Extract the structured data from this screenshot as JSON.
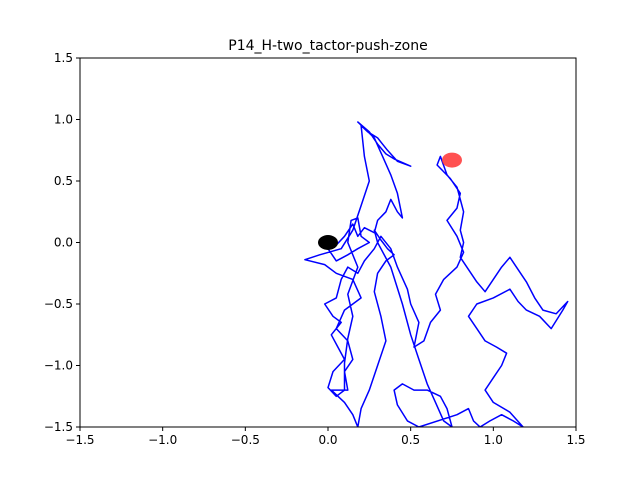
{
  "chart_data": {
    "type": "line",
    "title": "P14_H-two_tactor-push-zone",
    "xlabel": "",
    "ylabel": "",
    "xlim": [
      -1.5,
      1.5
    ],
    "ylim": [
      -1.5,
      1.5
    ],
    "xticks": [
      "−1.5",
      "−1.0",
      "−0.5",
      "0.0",
      "0.5",
      "1.0",
      "1.5"
    ],
    "xtick_values": [
      -1.5,
      -1.0,
      -0.5,
      0.0,
      0.5,
      1.0,
      1.5
    ],
    "yticks": [
      "−1.5",
      "−1.0",
      "−0.5",
      "0.0",
      "0.5",
      "1.0",
      "1.5"
    ],
    "ytick_values": [
      -1.5,
      -1.0,
      -0.5,
      0.0,
      0.5,
      1.0,
      1.5
    ],
    "grid": false,
    "colors": {
      "path": "#0000ff",
      "start": "#000000",
      "target": "#ff3333"
    },
    "start_marker": {
      "x": 0.0,
      "y": 0.0
    },
    "target_marker": {
      "x": 0.75,
      "y": 0.67
    },
    "series": [
      {
        "points": [
          [
            0.0,
            0.0
          ],
          [
            0.05,
            -0.02
          ],
          [
            0.1,
            0.05
          ],
          [
            0.15,
            0.15
          ],
          [
            0.18,
            0.05
          ],
          [
            0.22,
            0.12
          ],
          [
            0.28,
            0.08
          ],
          [
            0.3,
            0.18
          ],
          [
            0.35,
            0.25
          ],
          [
            0.38,
            0.35
          ],
          [
            0.42,
            0.25
          ],
          [
            0.45,
            0.2
          ],
          [
            0.42,
            0.4
          ],
          [
            0.38,
            0.55
          ],
          [
            0.33,
            0.7
          ],
          [
            0.28,
            0.85
          ],
          [
            0.18,
            0.98
          ],
          [
            0.25,
            0.9
          ],
          [
            0.3,
            0.8
          ],
          [
            0.35,
            0.72
          ],
          [
            0.4,
            0.68
          ],
          [
            0.45,
            0.65
          ],
          [
            0.5,
            0.62
          ],
          [
            0.42,
            0.66
          ],
          [
            0.36,
            0.75
          ],
          [
            0.3,
            0.85
          ],
          [
            0.24,
            0.9
          ],
          [
            0.2,
            0.95
          ],
          [
            0.22,
            0.7
          ],
          [
            0.25,
            0.5
          ],
          [
            0.2,
            0.3
          ],
          [
            0.15,
            0.1
          ],
          [
            0.08,
            -0.05
          ],
          [
            -0.05,
            -0.1
          ],
          [
            -0.14,
            -0.14
          ],
          [
            -0.02,
            -0.18
          ],
          [
            0.05,
            -0.25
          ],
          [
            0.15,
            -0.3
          ],
          [
            0.2,
            -0.45
          ],
          [
            0.1,
            -0.55
          ],
          [
            0.05,
            -0.7
          ],
          [
            0.12,
            -0.8
          ],
          [
            0.15,
            -0.95
          ],
          [
            0.1,
            -1.05
          ],
          [
            0.12,
            -1.2
          ],
          [
            0.02,
            -1.2
          ],
          [
            0.1,
            -1.3
          ],
          [
            0.15,
            -1.4
          ],
          [
            0.18,
            -1.5
          ],
          [
            0.2,
            -1.35
          ],
          [
            0.25,
            -1.2
          ],
          [
            0.3,
            -1.0
          ],
          [
            0.35,
            -0.8
          ],
          [
            0.32,
            -0.6
          ],
          [
            0.28,
            -0.4
          ],
          [
            0.3,
            -0.25
          ],
          [
            0.35,
            -0.15
          ],
          [
            0.4,
            -0.1
          ],
          [
            0.36,
            -0.05
          ],
          [
            0.32,
            0.02
          ],
          [
            0.28,
            0.1
          ],
          [
            0.3,
            0.0
          ],
          [
            0.38,
            -0.2
          ],
          [
            0.45,
            -0.5
          ],
          [
            0.5,
            -0.75
          ],
          [
            0.55,
            -0.95
          ],
          [
            0.6,
            -1.15
          ],
          [
            0.65,
            -1.3
          ],
          [
            0.7,
            -1.45
          ],
          [
            0.75,
            -1.5
          ],
          [
            0.72,
            -1.35
          ],
          [
            0.68,
            -1.25
          ],
          [
            0.6,
            -1.2
          ],
          [
            0.52,
            -1.2
          ],
          [
            0.45,
            -1.15
          ],
          [
            0.4,
            -1.2
          ],
          [
            0.42,
            -1.32
          ],
          [
            0.48,
            -1.45
          ],
          [
            0.55,
            -1.5
          ],
          [
            0.78,
            -1.4
          ],
          [
            0.85,
            -1.35
          ],
          [
            0.88,
            -1.45
          ],
          [
            0.92,
            -1.5
          ],
          [
            0.98,
            -1.45
          ],
          [
            1.05,
            -1.4
          ],
          [
            1.12,
            -1.45
          ],
          [
            1.18,
            -1.5
          ],
          [
            1.1,
            -1.38
          ],
          [
            1.0,
            -1.3
          ],
          [
            0.95,
            -1.2
          ],
          [
            1.0,
            -1.1
          ],
          [
            1.05,
            -1.0
          ],
          [
            1.08,
            -0.9
          ],
          [
            1.02,
            -0.85
          ],
          [
            0.95,
            -0.8
          ],
          [
            0.9,
            -0.7
          ],
          [
            0.85,
            -0.6
          ],
          [
            0.9,
            -0.5
          ],
          [
            1.0,
            -0.45
          ],
          [
            1.1,
            -0.38
          ],
          [
            1.15,
            -0.48
          ],
          [
            1.2,
            -0.55
          ],
          [
            1.28,
            -0.6
          ],
          [
            1.35,
            -0.7
          ],
          [
            1.42,
            -0.55
          ],
          [
            1.45,
            -0.48
          ],
          [
            1.38,
            -0.58
          ],
          [
            1.3,
            -0.55
          ],
          [
            1.25,
            -0.45
          ],
          [
            1.2,
            -0.32
          ],
          [
            1.15,
            -0.22
          ],
          [
            1.1,
            -0.12
          ],
          [
            1.05,
            -0.2
          ],
          [
            1.0,
            -0.3
          ],
          [
            0.95,
            -0.4
          ],
          [
            0.9,
            -0.32
          ],
          [
            0.85,
            -0.22
          ],
          [
            0.8,
            -0.12
          ],
          [
            0.82,
            0.0
          ],
          [
            0.8,
            0.1
          ],
          [
            0.82,
            0.25
          ],
          [
            0.8,
            0.35
          ],
          [
            0.78,
            0.45
          ],
          [
            0.72,
            0.55
          ],
          [
            0.68,
            0.7
          ],
          [
            0.66,
            0.63
          ],
          [
            0.74,
            0.52
          ],
          [
            0.8,
            0.4
          ],
          [
            0.78,
            0.28
          ],
          [
            0.72,
            0.18
          ],
          [
            0.78,
            0.05
          ],
          [
            0.82,
            -0.08
          ],
          [
            0.78,
            -0.2
          ],
          [
            0.7,
            -0.3
          ],
          [
            0.65,
            -0.42
          ],
          [
            0.68,
            -0.55
          ],
          [
            0.62,
            -0.65
          ],
          [
            0.58,
            -0.8
          ],
          [
            0.52,
            -0.85
          ],
          [
            0.55,
            -0.65
          ],
          [
            0.5,
            -0.5
          ],
          [
            0.48,
            -0.38
          ],
          [
            0.42,
            -0.2
          ],
          [
            0.38,
            -0.05
          ],
          [
            0.32,
            0.05
          ],
          [
            0.28,
            -0.05
          ],
          [
            0.22,
            -0.15
          ],
          [
            0.18,
            -0.25
          ],
          [
            0.12,
            -0.2
          ],
          [
            0.08,
            -0.3
          ],
          [
            0.05,
            -0.45
          ],
          [
            -0.02,
            -0.5
          ],
          [
            0.03,
            -0.6
          ],
          [
            0.08,
            -0.65
          ],
          [
            0.02,
            -0.75
          ],
          [
            0.06,
            -0.85
          ],
          [
            0.1,
            -0.95
          ],
          [
            0.03,
            -1.05
          ],
          [
            0.0,
            -1.18
          ],
          [
            0.05,
            -1.25
          ],
          [
            0.1,
            -1.2
          ],
          [
            0.1,
            -1.1
          ],
          [
            0.1,
            -0.98
          ],
          [
            0.12,
            -0.78
          ],
          [
            0.15,
            -0.6
          ],
          [
            0.12,
            -0.42
          ],
          [
            0.18,
            -0.2
          ],
          [
            0.12,
            0.0
          ],
          [
            0.14,
            0.18
          ],
          [
            0.18,
            0.2
          ],
          [
            0.2,
            0.05
          ],
          [
            0.25,
            0.0
          ],
          [
            0.18,
            -0.05
          ],
          [
            0.12,
            -0.1
          ],
          [
            0.05,
            -0.15
          ],
          [
            0.0,
            -0.05
          ],
          [
            0.02,
            0.02
          ],
          [
            0.0,
            0.0
          ]
        ]
      }
    ]
  }
}
